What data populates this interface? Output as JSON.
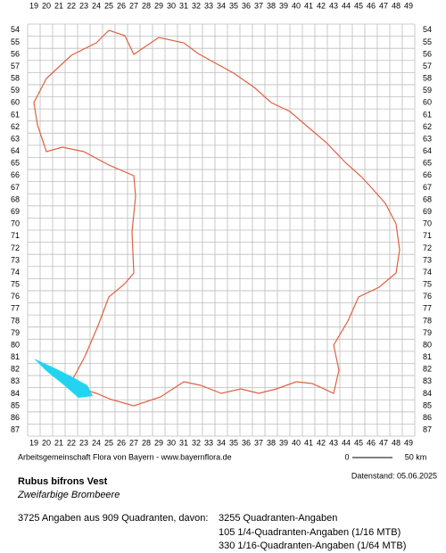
{
  "map": {
    "columns": [
      19,
      20,
      21,
      22,
      23,
      24,
      25,
      26,
      27,
      28,
      29,
      30,
      31,
      32,
      33,
      34,
      35,
      36,
      37,
      38,
      39,
      40,
      41,
      42,
      43,
      44,
      45,
      46,
      47,
      48,
      49
    ],
    "rows": [
      54,
      55,
      56,
      57,
      58,
      59,
      60,
      61,
      62,
      63,
      64,
      65,
      66,
      67,
      68,
      69,
      70,
      71,
      72,
      73,
      74,
      75,
      76,
      77,
      78,
      79,
      80,
      81,
      82,
      83,
      84,
      85,
      86,
      87
    ]
  },
  "footer": {
    "credit": "Arbeitsgemeinschaft Flora von Bayern - www.bayernflora.de",
    "scale_start": "0",
    "scale_end": "50 km",
    "date": "Datenstand: 05.06.2025"
  },
  "species": {
    "name": "Rubus bifrons Vest",
    "common_name": "Zweifarbige Brombeere"
  },
  "summary": {
    "total": "3725 Angaben aus 909 Quadranten, davon:",
    "breakdown": [
      "3255 Quadranten-Angaben",
      "105 1/4-Quadranten-Angaben (1/16 MTB)",
      "330 1/16-Quadranten-Angaben (1/64 MTB)"
    ]
  }
}
